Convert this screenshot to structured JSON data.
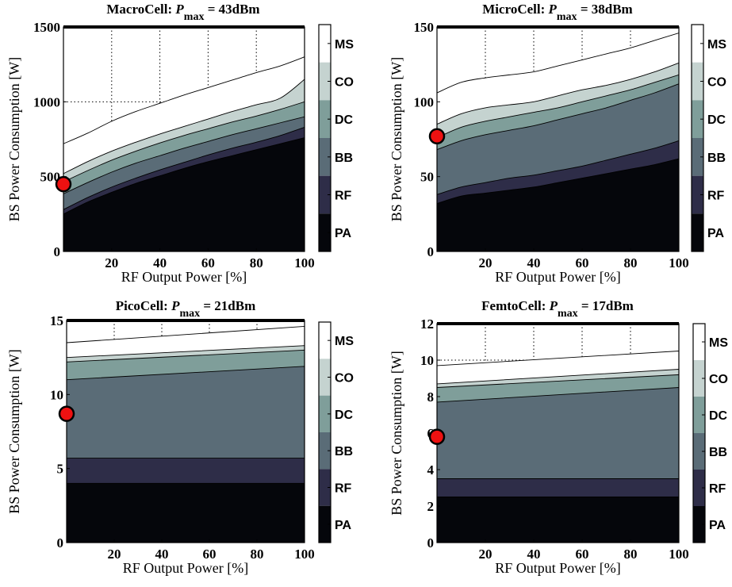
{
  "colors": {
    "MS": "#ffffff",
    "CO": "#c5d3d0",
    "DC": "#7f9e9a",
    "BB": "#5a6c77",
    "RF": "#2e2d48",
    "PA": "#05060b",
    "marker": "#ee1111"
  },
  "chart_data": [
    {
      "type": "area",
      "title": "MacroCell:",
      "title_p": "P",
      "title_sub": "max",
      "title_val": "= 43dBm",
      "xlabel": "RF Output Power [%]",
      "ylabel": "BS Power Consumption [W]",
      "xlim": [
        0,
        100
      ],
      "ylim": [
        0,
        1500
      ],
      "xticks": [
        20,
        40,
        60,
        80,
        100
      ],
      "yticks": [
        0,
        500,
        1000,
        1500
      ],
      "x": [
        0,
        10,
        20,
        30,
        40,
        50,
        60,
        70,
        80,
        90,
        100
      ],
      "stack_order": [
        "PA",
        "RF",
        "BB",
        "DC",
        "CO",
        "MS"
      ],
      "series": [
        {
          "name": "PA",
          "values": [
            250,
            330,
            395,
            455,
            505,
            555,
            600,
            640,
            680,
            720,
            760
          ]
        },
        {
          "name": "RF",
          "values": [
            280,
            360,
            430,
            490,
            545,
            595,
            645,
            690,
            730,
            775,
            830
          ]
        },
        {
          "name": "BB",
          "values": [
            385,
            460,
            530,
            590,
            640,
            690,
            735,
            780,
            820,
            860,
            900
          ]
        },
        {
          "name": "DC",
          "values": [
            465,
            540,
            610,
            670,
            725,
            775,
            820,
            865,
            905,
            950,
            1000
          ]
        },
        {
          "name": "CO",
          "values": [
            520,
            600,
            670,
            730,
            785,
            835,
            885,
            935,
            980,
            1025,
            1150
          ]
        },
        {
          "name": "MS",
          "values": [
            720,
            790,
            870,
            935,
            990,
            1045,
            1095,
            1145,
            1195,
            1240,
            1300
          ]
        }
      ],
      "marker": {
        "x": 0,
        "y": 450
      }
    },
    {
      "type": "area",
      "title": "MicroCell:",
      "title_p": "P",
      "title_sub": "max",
      "title_val": "= 38dBm",
      "xlabel": "RF Output Power [%]",
      "ylabel": "BS Power Consumption [W]",
      "xlim": [
        0,
        100
      ],
      "ylim": [
        0,
        150
      ],
      "xticks": [
        20,
        40,
        60,
        80,
        100
      ],
      "yticks": [
        0,
        50,
        100,
        150
      ],
      "x": [
        0,
        10,
        20,
        30,
        40,
        50,
        60,
        70,
        80,
        90,
        100
      ],
      "stack_order": [
        "PA",
        "RF",
        "BB",
        "DC",
        "CO",
        "MS"
      ],
      "series": [
        {
          "name": "PA",
          "values": [
            32,
            37,
            39,
            41,
            43,
            46,
            49,
            52,
            55,
            58,
            62
          ]
        },
        {
          "name": "RF",
          "values": [
            38,
            43,
            46,
            49,
            51,
            54,
            57,
            61,
            65,
            69,
            74
          ]
        },
        {
          "name": "BB",
          "values": [
            68,
            74,
            78,
            81,
            84,
            88,
            92,
            96,
            101,
            106,
            112
          ]
        },
        {
          "name": "DC",
          "values": [
            76,
            83,
            87,
            90,
            93,
            96,
            100,
            104,
            108,
            113,
            118
          ]
        },
        {
          "name": "CO",
          "values": [
            85,
            92,
            96,
            98,
            100,
            104,
            108,
            111,
            115,
            120,
            126
          ]
        },
        {
          "name": "MS",
          "values": [
            106,
            113,
            116,
            118,
            120,
            124,
            128,
            132,
            136,
            141,
            146
          ]
        }
      ],
      "marker": {
        "x": 0,
        "y": 77
      }
    },
    {
      "type": "area",
      "title": "PicoCell:",
      "title_p": "P",
      "title_sub": "max",
      "title_val": "= 21dBm",
      "xlabel": "RF Output Power [%]",
      "ylabel": "BS Power Consumption [W]",
      "xlim": [
        0,
        100
      ],
      "ylim": [
        0,
        15
      ],
      "xticks": [
        20,
        40,
        60,
        80,
        100
      ],
      "yticks": [
        0,
        5,
        10,
        15
      ],
      "x": [
        0,
        100
      ],
      "stack_order": [
        "PA",
        "RF",
        "BB",
        "DC",
        "CO",
        "MS"
      ],
      "series": [
        {
          "name": "PA",
          "values": [
            4.0,
            4.0
          ]
        },
        {
          "name": "RF",
          "values": [
            5.7,
            5.7
          ]
        },
        {
          "name": "BB",
          "values": [
            11.0,
            11.9
          ]
        },
        {
          "name": "DC",
          "values": [
            12.2,
            13.0
          ]
        },
        {
          "name": "CO",
          "values": [
            12.5,
            13.3
          ]
        },
        {
          "name": "MS",
          "values": [
            13.5,
            14.6
          ]
        }
      ],
      "marker": {
        "x": 0,
        "y": 8.7
      }
    },
    {
      "type": "area",
      "title": "FemtoCell:",
      "title_p": "P",
      "title_sub": "max",
      "title_val": "= 17dBm",
      "xlabel": "RF Output Power [%]",
      "ylabel": "BS Power Consumption [W]",
      "xlim": [
        0,
        100
      ],
      "ylim": [
        0,
        12
      ],
      "xticks": [
        20,
        40,
        60,
        80,
        100
      ],
      "yticks": [
        0,
        2,
        4,
        6,
        8,
        10,
        12
      ],
      "x": [
        0,
        100
      ],
      "stack_order": [
        "PA",
        "RF",
        "BB",
        "DC",
        "CO",
        "MS"
      ],
      "series": [
        {
          "name": "PA",
          "values": [
            2.5,
            2.5
          ]
        },
        {
          "name": "RF",
          "values": [
            3.5,
            3.5
          ]
        },
        {
          "name": "BB",
          "values": [
            7.7,
            8.5
          ]
        },
        {
          "name": "DC",
          "values": [
            8.5,
            9.2
          ]
        },
        {
          "name": "CO",
          "values": [
            8.7,
            9.5
          ]
        },
        {
          "name": "MS",
          "values": [
            9.7,
            10.5
          ]
        }
      ],
      "marker": {
        "x": 0,
        "y": 5.8
      }
    }
  ],
  "colorbar_labels": [
    "MS",
    "CO",
    "DC",
    "BB",
    "RF",
    "PA"
  ]
}
